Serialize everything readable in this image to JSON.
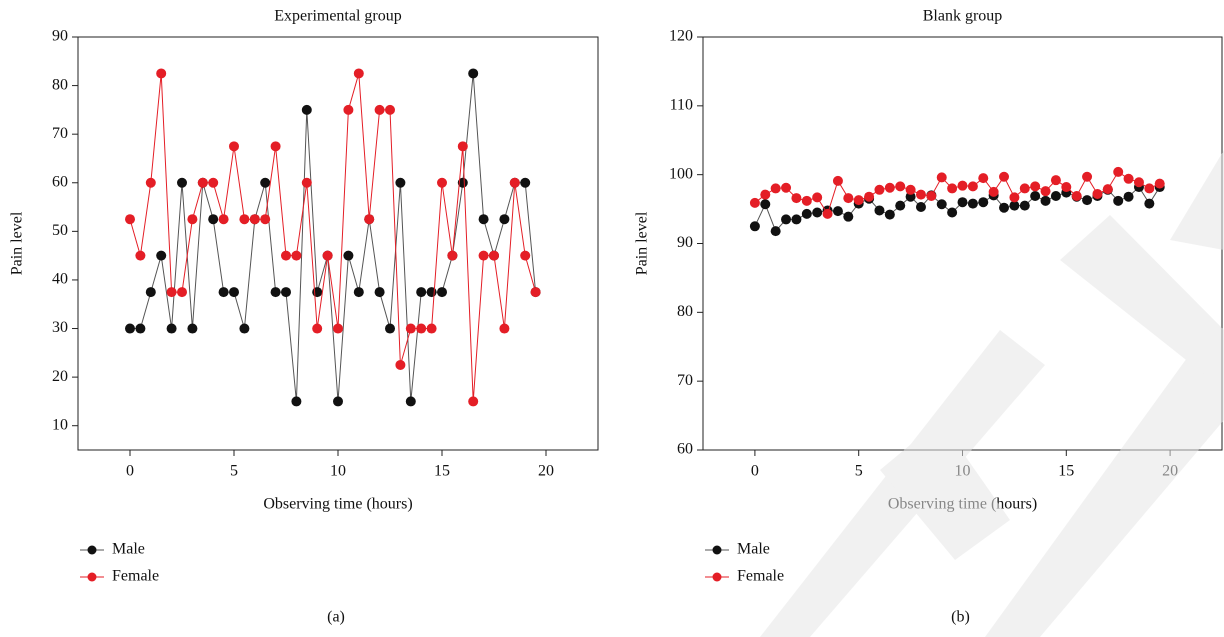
{
  "chart_data": [
    {
      "type": "line",
      "title": "Experimental group",
      "x_label": "Observing time (hours)",
      "y_label": "Pain level",
      "panel_label": "(a)",
      "x": [
        0,
        0.5,
        1,
        1.5,
        2,
        2.5,
        3,
        3.5,
        4,
        4.5,
        5,
        5.5,
        6,
        6.5,
        7,
        7.5,
        8,
        8.5,
        9,
        9.5,
        10,
        10.5,
        11,
        11.5,
        12,
        12.5,
        13,
        13.5,
        14,
        14.5,
        15,
        15.5,
        16,
        16.5,
        17,
        17.5,
        18,
        18.5,
        19,
        19.5
      ],
      "series": [
        {
          "name": "Male",
          "color": "#111111",
          "line_color": "#555555",
          "values": [
            30,
            30,
            37.5,
            45,
            30,
            60,
            30,
            60,
            52.5,
            37.5,
            37.5,
            30,
            52.5,
            60,
            37.5,
            37.5,
            15,
            75,
            37.5,
            45,
            15,
            45,
            37.5,
            52.5,
            37.5,
            30,
            60,
            15,
            37.5,
            37.5,
            37.5,
            45,
            60,
            82.5,
            52.5,
            45,
            52.5,
            60,
            60,
            37.5
          ]
        },
        {
          "name": "Female",
          "color": "#e41e26",
          "line_color": "#e41e26",
          "values": [
            52.5,
            45,
            60,
            82.5,
            37.5,
            37.5,
            52.5,
            60,
            60,
            52.5,
            67.5,
            52.5,
            52.5,
            52.5,
            67.5,
            45,
            45,
            60,
            30,
            45,
            30,
            75,
            82.5,
            52.5,
            75,
            75,
            22.5,
            30,
            30,
            30,
            60,
            45,
            67.5,
            15,
            45,
            45,
            30,
            60,
            45,
            37.5
          ]
        }
      ],
      "xlim": [
        -2.5,
        22.5
      ],
      "xticks": [
        0,
        5,
        10,
        15,
        20
      ],
      "ylim": [
        5,
        90
      ],
      "yticks": [
        10,
        20,
        30,
        40,
        50,
        60,
        70,
        80,
        90
      ],
      "legend": "bottom-left"
    },
    {
      "type": "line",
      "title": "Blank group",
      "x_label": "Observing time (hours)",
      "y_label": "Pain level",
      "panel_label": "(b)",
      "x": [
        0,
        0.5,
        1,
        1.5,
        2,
        2.5,
        3,
        3.5,
        4,
        4.5,
        5,
        5.5,
        6,
        6.5,
        7,
        7.5,
        8,
        8.5,
        9,
        9.5,
        10,
        10.5,
        11,
        11.5,
        12,
        12.5,
        13,
        13.5,
        14,
        14.5,
        15,
        15.5,
        16,
        16.5,
        17,
        17.5,
        18,
        18.5,
        19,
        19.5
      ],
      "series": [
        {
          "name": "Male",
          "color": "#111111",
          "line_color": "#555555",
          "values": [
            92.5,
            95.7,
            91.8,
            93.5,
            93.5,
            94.3,
            94.5,
            94.8,
            94.7,
            93.9,
            95.8,
            96.5,
            94.8,
            94.2,
            95.5,
            96.8,
            95.3,
            97.0,
            95.7,
            94.5,
            96.0,
            95.8,
            96.0,
            97.0,
            95.2,
            95.5,
            95.5,
            96.9,
            96.2,
            96.9,
            97.4,
            96.8,
            96.3,
            96.9,
            97.8,
            96.2,
            96.8,
            98.2,
            95.8,
            98.2
          ]
        },
        {
          "name": "Female",
          "color": "#e41e26",
          "line_color": "#e41e26",
          "values": [
            95.9,
            97.1,
            98.0,
            98.1,
            96.6,
            96.2,
            96.7,
            94.3,
            99.1,
            96.6,
            96.3,
            96.8,
            97.8,
            98.1,
            98.3,
            97.8,
            97.1,
            96.9,
            99.6,
            98.0,
            98.4,
            98.3,
            99.5,
            97.5,
            99.7,
            96.7,
            98.0,
            98.3,
            97.6,
            99.2,
            98.2,
            96.9,
            99.7,
            97.2,
            97.9,
            100.4,
            99.4,
            98.9,
            98.0,
            98.7
          ]
        }
      ],
      "xlim": [
        -2.5,
        22.5
      ],
      "xticks": [
        0,
        5,
        10,
        15,
        20
      ],
      "ylim": [
        60,
        120
      ],
      "yticks": [
        60,
        70,
        80,
        90,
        100,
        110,
        120
      ],
      "legend": "bottom-left"
    }
  ]
}
